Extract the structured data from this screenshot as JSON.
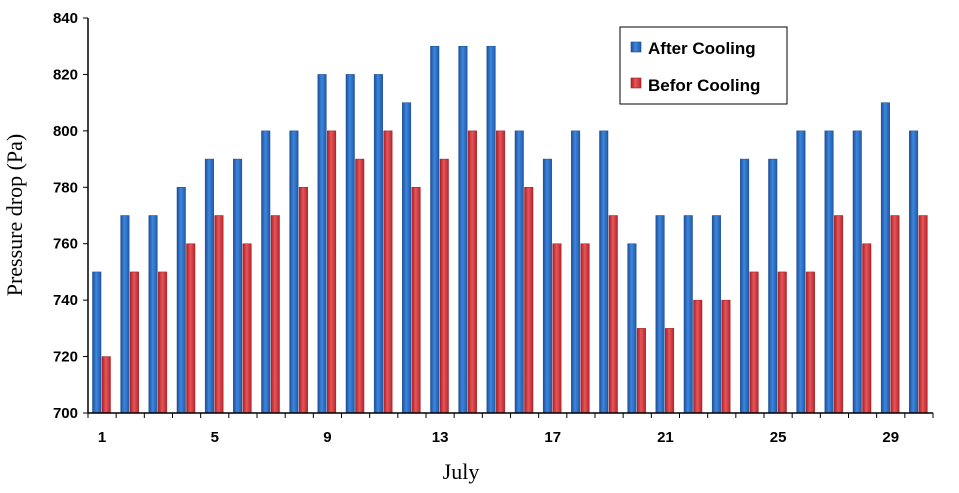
{
  "chart_data": {
    "type": "bar",
    "xlabel": "July",
    "ylabel": "Pressure drop (Pa)",
    "ylim": [
      700,
      840
    ],
    "yticks": [
      700,
      720,
      740,
      760,
      780,
      800,
      820,
      840
    ],
    "categories": [
      1,
      2,
      3,
      4,
      5,
      6,
      7,
      8,
      9,
      10,
      11,
      12,
      13,
      14,
      15,
      16,
      17,
      18,
      19,
      20,
      21,
      22,
      23,
      24,
      25,
      26,
      27,
      28,
      29,
      30
    ],
    "xtick_labels": [
      "1",
      "5",
      "9",
      "13",
      "17",
      "21",
      "25",
      "29"
    ],
    "legend_position": "top-right",
    "grid": false,
    "series": [
      {
        "name": "After Cooling",
        "color": "#2f6fc0",
        "values": [
          750,
          770,
          770,
          780,
          790,
          790,
          800,
          800,
          820,
          820,
          820,
          810,
          830,
          830,
          830,
          800,
          790,
          800,
          800,
          760,
          770,
          770,
          770,
          790,
          790,
          800,
          800,
          800,
          810,
          800
        ]
      },
      {
        "name": "Befor Cooling",
        "color": "#d8393d",
        "values": [
          720,
          750,
          750,
          760,
          770,
          760,
          770,
          780,
          800,
          790,
          800,
          780,
          790,
          800,
          800,
          780,
          760,
          760,
          770,
          730,
          730,
          740,
          740,
          750,
          750,
          750,
          770,
          760,
          770,
          770
        ]
      }
    ]
  }
}
